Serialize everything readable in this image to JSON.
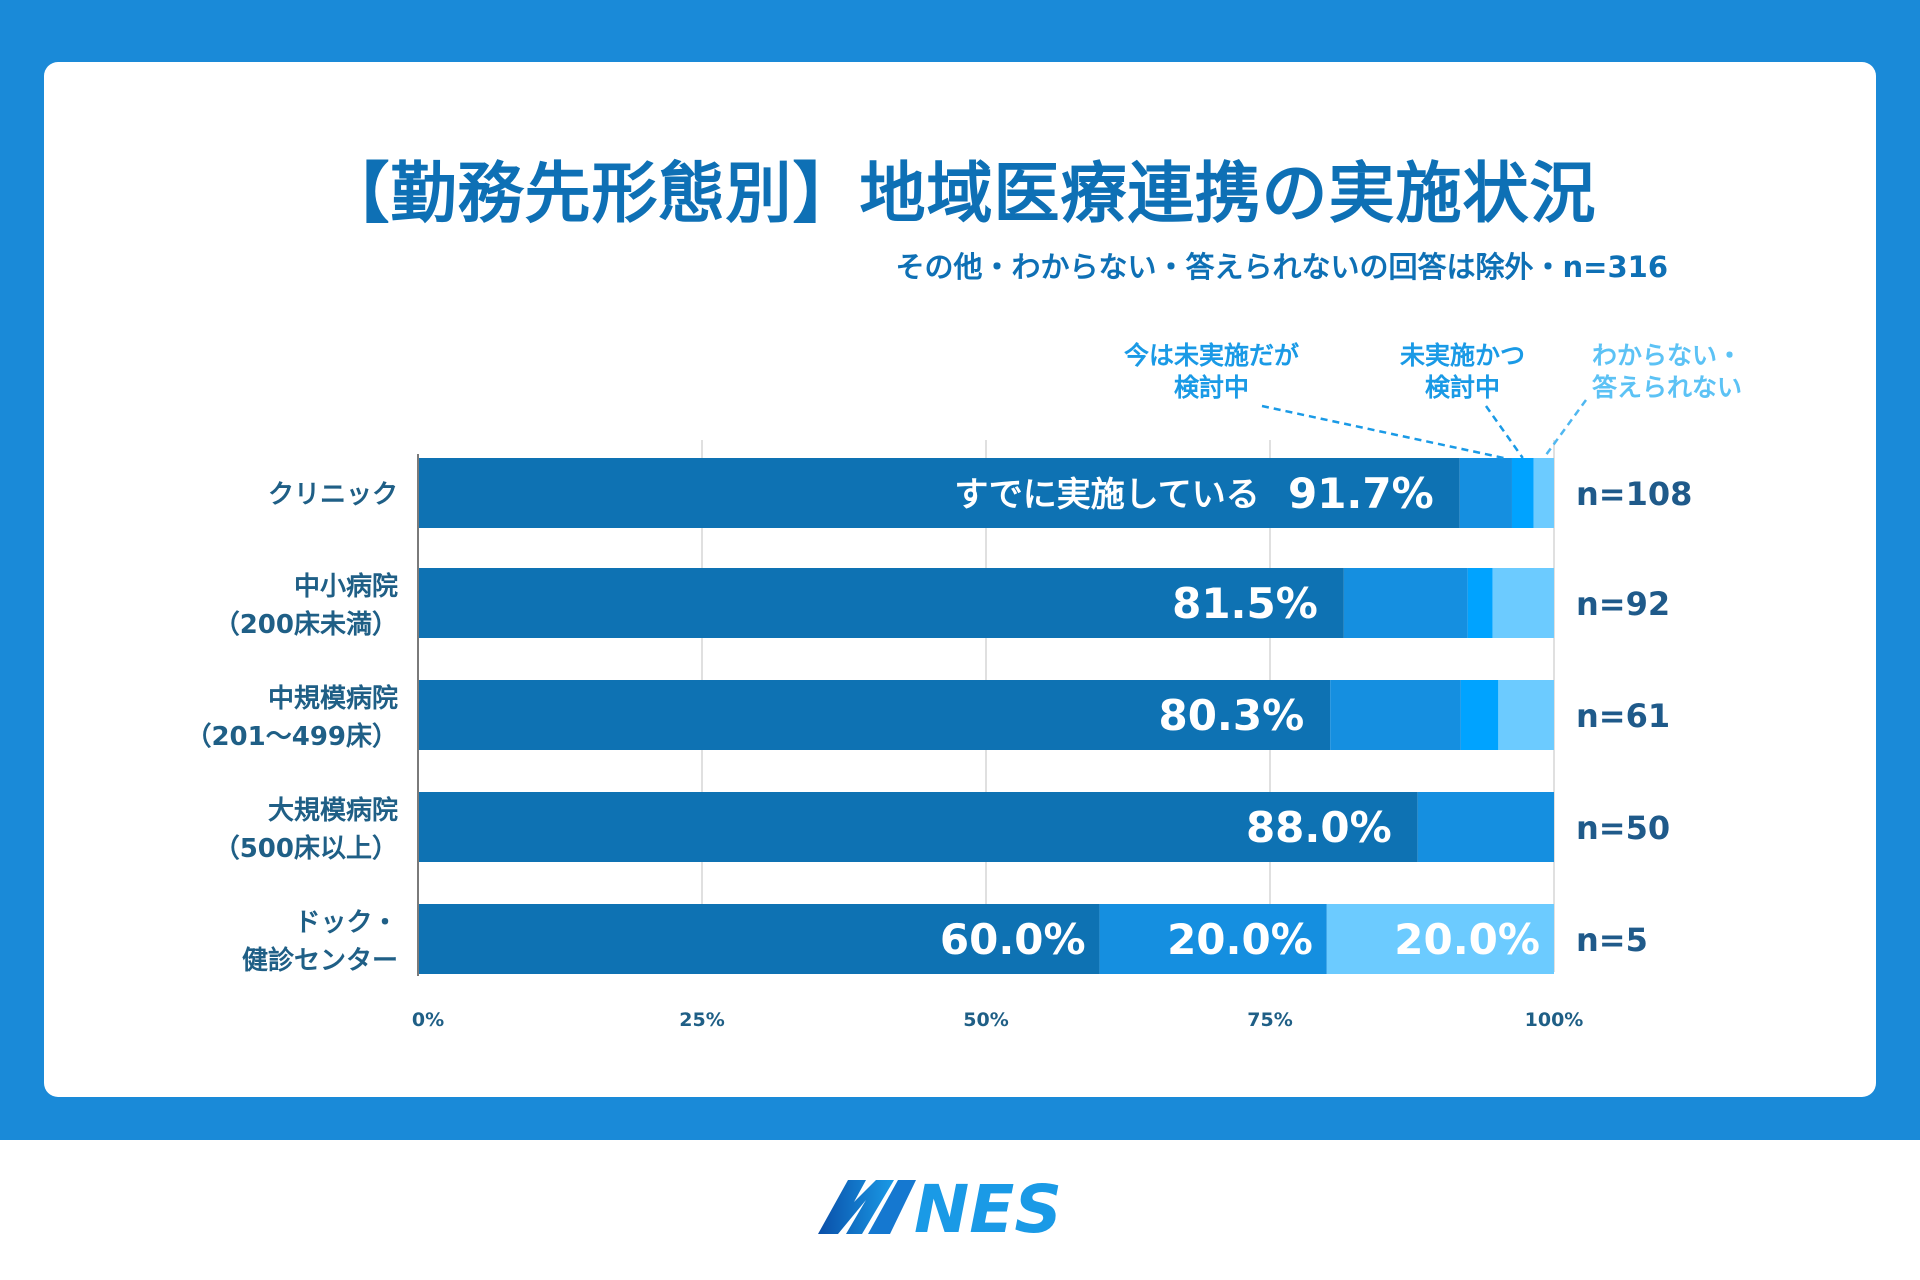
{
  "header": {
    "title": "【勤務先形態別】地域医療連携の実施状況",
    "subtitle": "その他・わからない・答えられないの回答は除外・n=316"
  },
  "legend_notes": [
    {
      "line1": "今は未実施だが",
      "line2": "検討中",
      "color": "#1a9ae6"
    },
    {
      "line1": "未実施かつ",
      "line2": "検討中",
      "color": "#1a9ae6"
    },
    {
      "line1": "わからない・",
      "line2": "答えられない",
      "color": "#5cc2f5"
    }
  ],
  "bar_label_prefix": "すでに実施している",
  "logo": {
    "text": "MNES"
  },
  "colors": {
    "frame": "#1a8ad8",
    "implemented": "#0e72b3",
    "considering": "#158fe0",
    "not_considering": "#00a3ff",
    "unknown": "#6ccbff",
    "category_text": "#1f5f86",
    "n_text": "#1f5a8a",
    "title": "#0e70b5"
  },
  "chart_data": {
    "type": "bar",
    "orientation": "horizontal",
    "stacked": true,
    "title": "【勤務先形態別】地域医療連携の実施状況",
    "subtitle": "その他・わからない・答えられないの回答は除外・n=316",
    "categories": [
      {
        "line1": "クリニック",
        "line2": ""
      },
      {
        "line1": "中小病院",
        "line2": "（200床未満）"
      },
      {
        "line1": "中規模病院",
        "line2": "（201～499床）"
      },
      {
        "line1": "大規模病院",
        "line2": "（500床以上）"
      },
      {
        "line1": "ドック・",
        "line2": "健診センター"
      }
    ],
    "n_labels": [
      "n=108",
      "n=92",
      "n=61",
      "n=50",
      "n=5"
    ],
    "series": [
      {
        "name": "すでに実施している",
        "values": [
          91.7,
          81.5,
          80.3,
          88.0,
          60.0
        ]
      },
      {
        "name": "今は未実施だが検討中",
        "values": [
          4.6,
          10.9,
          11.5,
          12.0,
          20.0
        ]
      },
      {
        "name": "未実施かつ検討中",
        "values": [
          1.9,
          2.2,
          3.3,
          0.0,
          0.0
        ]
      },
      {
        "name": "わからない・答えられない",
        "values": [
          1.8,
          5.4,
          4.9,
          0.0,
          20.0
        ]
      }
    ],
    "data_labels": [
      [
        "91.7%"
      ],
      [
        "81.5%"
      ],
      [
        "80.3%"
      ],
      [
        "88.0%"
      ],
      [
        "60.0%",
        "20.0%",
        "20.0%"
      ]
    ],
    "xlim": [
      0,
      100
    ],
    "x_ticks": [
      "0%",
      "25%",
      "50%",
      "75%",
      "100%"
    ],
    "x_tick_values": [
      0,
      25,
      50,
      75,
      100
    ],
    "grid": true
  }
}
